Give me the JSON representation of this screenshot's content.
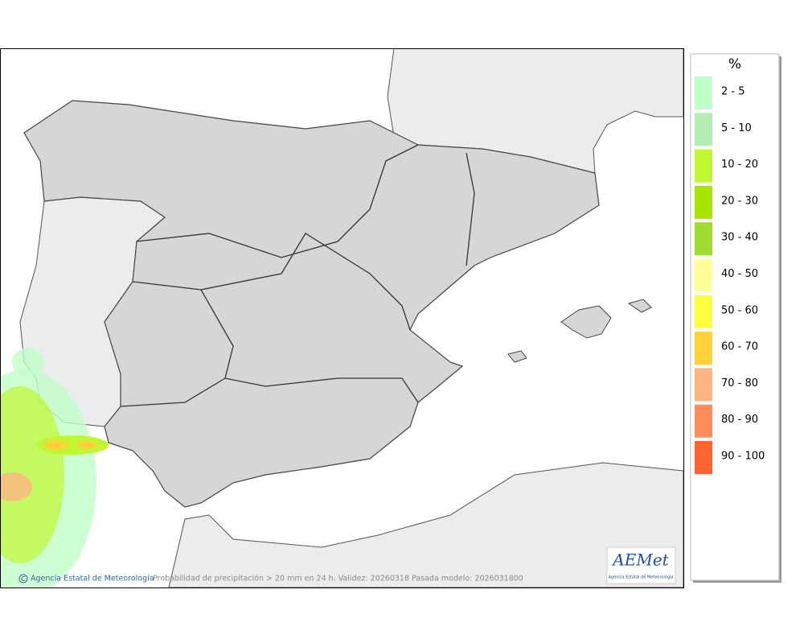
{
  "legend": {
    "unit": "%",
    "items": [
      {
        "label": "2 - 5",
        "color": "#c0ffc8"
      },
      {
        "label": "5 - 10",
        "color": "#b4eeb4"
      },
      {
        "label": "10 - 20",
        "color": "#c0f730"
      },
      {
        "label": "20 - 30",
        "color": "#a8e600"
      },
      {
        "label": "30 - 40",
        "color": "#a0dc32"
      },
      {
        "label": "40 - 50",
        "color": "#ffff99"
      },
      {
        "label": "50 - 60",
        "color": "#ffff40"
      },
      {
        "label": "60 - 70",
        "color": "#ffd23c"
      },
      {
        "label": "70 - 80",
        "color": "#ffb482"
      },
      {
        "label": "80 - 90",
        "color": "#ff8c5a"
      },
      {
        "label": "90 - 100",
        "color": "#ff6432"
      }
    ]
  },
  "footer": {
    "credit": "Agencia Estatal de Meteorología",
    "caption": "Probabilidad de precipitación > 20 mm en 24 h. Validez: 20260318 Pasada modelo: 2026031800"
  },
  "logo": {
    "name": "AEMet",
    "subtitle": "Agencia Estatal de Meteorología"
  }
}
